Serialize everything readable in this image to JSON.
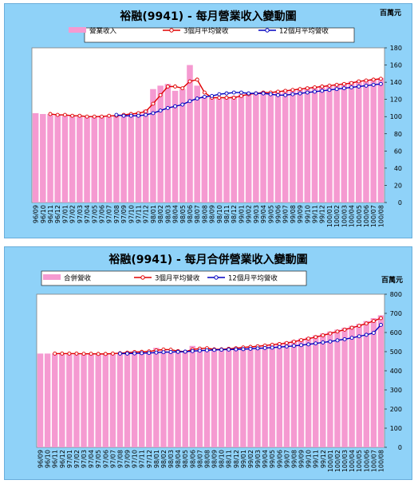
{
  "colors": {
    "background": "#8fd2f8",
    "bar": "#f59ad1",
    "line3": "#e00000",
    "line12": "#0000c0"
  },
  "months": [
    "96/09",
    "96/10",
    "96/11",
    "96/12",
    "97/01",
    "97/02",
    "97/03",
    "97/04",
    "97/05",
    "97/06",
    "97/07",
    "97/08",
    "97/09",
    "97/10",
    "97/11",
    "97/12",
    "98/01",
    "98/02",
    "98/03",
    "98/04",
    "98/05",
    "98/06",
    "98/07",
    "98/08",
    "98/09",
    "98/10",
    "98/11",
    "98/12",
    "99/01",
    "99/02",
    "99/03",
    "99/04",
    "99/05",
    "99/06",
    "99/07",
    "99/08",
    "99/09",
    "99/10",
    "99/11",
    "99/12",
    "100/01",
    "100/02",
    "100/03",
    "100/04",
    "100/05",
    "100/06",
    "100/07",
    "100/08"
  ],
  "chart_data": [
    {
      "type": "bar",
      "title": "裕融(9941) - 每月營業收入變動圖",
      "unit": "百萬元",
      "ylim": [
        0,
        180
      ],
      "yticks": [
        0,
        20,
        40,
        60,
        80,
        100,
        120,
        140,
        160,
        180
      ],
      "legend": "top",
      "series": [
        {
          "name": "營業收入",
          "kind": "bar",
          "values": [
            104,
            103,
            103,
            102,
            101,
            101,
            100,
            100,
            100,
            101,
            101,
            102,
            102,
            104,
            105,
            108,
            132,
            136,
            138,
            130,
            132,
            160,
            136,
            124,
            122,
            121,
            122,
            124,
            126,
            127,
            128,
            129,
            128,
            130,
            131,
            132,
            133,
            134,
            135,
            136,
            137,
            138,
            139,
            141,
            142,
            143,
            144,
            145
          ]
        },
        {
          "name": "3個月平均營收",
          "kind": "line",
          "values": [
            null,
            null,
            103,
            102,
            102,
            101,
            101,
            100,
            100,
            100,
            101,
            101,
            102,
            103,
            104,
            106,
            115,
            125,
            135,
            135,
            133,
            141,
            143,
            128,
            122,
            122,
            122,
            122,
            124,
            126,
            127,
            128,
            128,
            129,
            130,
            131,
            132,
            133,
            134,
            135,
            136,
            137,
            138,
            139,
            141,
            142,
            143,
            144
          ]
        },
        {
          "name": "12個月平均營收",
          "kind": "line",
          "values": [
            null,
            null,
            null,
            null,
            null,
            null,
            null,
            null,
            null,
            null,
            null,
            102,
            101,
            101,
            101,
            102,
            104,
            107,
            110,
            112,
            114,
            118,
            121,
            123,
            124,
            126,
            127,
            128,
            128,
            127,
            127,
            127,
            126,
            125,
            125,
            126,
            127,
            128,
            129,
            130,
            131,
            132,
            133,
            134,
            135,
            136,
            137,
            138
          ]
        }
      ]
    },
    {
      "type": "bar",
      "title": "裕融(9941) - 每月合併營業收入變動圖",
      "unit": "百萬元",
      "ylim": [
        0,
        800
      ],
      "yticks": [
        0,
        100,
        200,
        300,
        400,
        500,
        600,
        700,
        800
      ],
      "legend": "top",
      "series": [
        {
          "name": "合併營收",
          "kind": "bar",
          "values": [
            490,
            490,
            490,
            490,
            490,
            489,
            489,
            488,
            488,
            489,
            492,
            495,
            498,
            500,
            500,
            502,
            520,
            510,
            500,
            498,
            502,
            530,
            515,
            510,
            512,
            515,
            518,
            522,
            525,
            528,
            532,
            536,
            540,
            545,
            552,
            560,
            568,
            575,
            585,
            595,
            605,
            615,
            625,
            635,
            645,
            660,
            675,
            690
          ]
        },
        {
          "name": "3個月平均營收",
          "kind": "line",
          "values": [
            null,
            null,
            490,
            490,
            490,
            490,
            489,
            489,
            488,
            488,
            490,
            492,
            495,
            498,
            499,
            501,
            507,
            511,
            510,
            503,
            500,
            511,
            516,
            518,
            512,
            512,
            515,
            518,
            522,
            525,
            528,
            532,
            536,
            540,
            545,
            552,
            560,
            568,
            576,
            585,
            595,
            605,
            615,
            625,
            635,
            647,
            660,
            675
          ]
        },
        {
          "name": "12個月平均營收",
          "kind": "line",
          "values": [
            null,
            null,
            null,
            null,
            null,
            null,
            null,
            null,
            null,
            null,
            null,
            490,
            490,
            491,
            492,
            493,
            495,
            497,
            498,
            499,
            500,
            503,
            505,
            507,
            509,
            510,
            511,
            512,
            513,
            515,
            517,
            519,
            521,
            524,
            527,
            530,
            534,
            538,
            543,
            548,
            553,
            559,
            565,
            572,
            580,
            588,
            598,
            640
          ]
        }
      ]
    }
  ]
}
